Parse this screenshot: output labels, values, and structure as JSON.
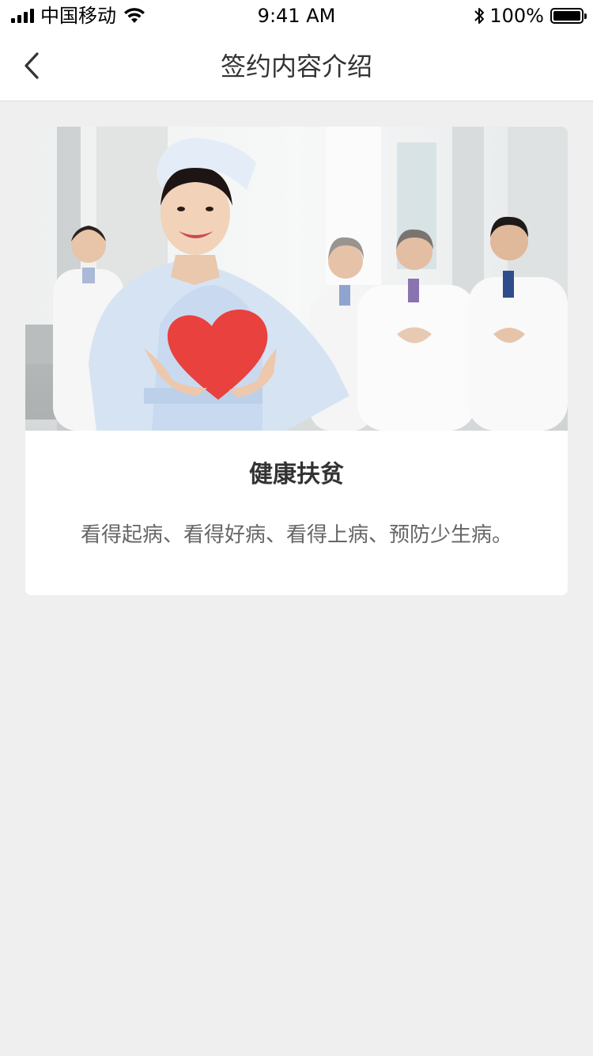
{
  "status_bar": {
    "carrier": "中国移动",
    "time": "9:41 AM",
    "battery": "100%"
  },
  "nav": {
    "title": "签约内容介绍",
    "back_icon": "chevron-left-icon"
  },
  "card": {
    "image": "nurse-holding-heart-with-doctors-photo",
    "title": "健康扶贫",
    "description": "看得起病、看得好病、看得上病、预防少生病。"
  },
  "colors": {
    "background": "#efefef",
    "card": "#ffffff",
    "title_text": "#333333",
    "desc_text": "#666666",
    "heart": "#e8413e"
  }
}
